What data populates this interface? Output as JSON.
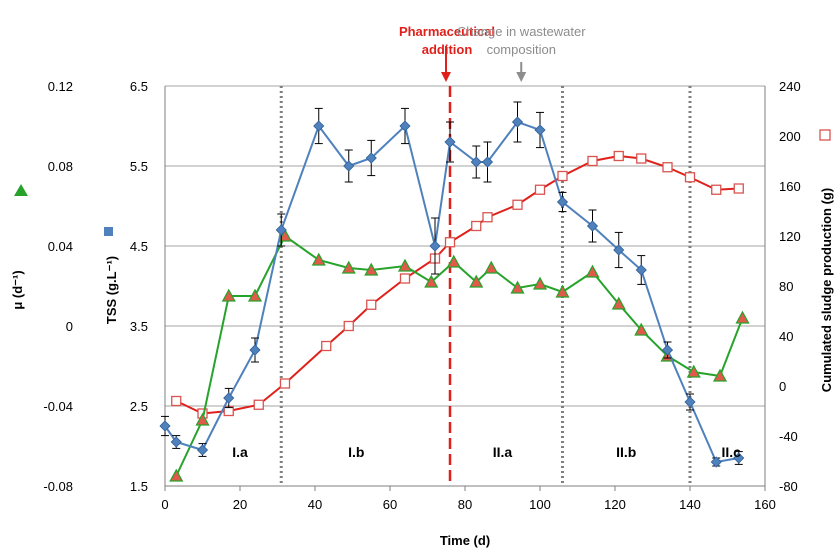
{
  "chart_data": {
    "type": "line",
    "xlabel": "Time (d)",
    "xlim": [
      0,
      160
    ],
    "x_ticks": [
      "0",
      "20",
      "40",
      "60",
      "80",
      "100",
      "120",
      "140",
      "160"
    ],
    "axes": {
      "mu": {
        "label": "μ (d⁻¹)",
        "lim": [
          -0.08,
          0.12
        ],
        "ticks": [
          "-0.08",
          "-0.04",
          "0",
          "0.04",
          "0.08",
          "0.12"
        ],
        "marker_color": "#27a32c"
      },
      "tss": {
        "label": "TSS (g.L⁻¹)",
        "lim": [
          1.5,
          6.5
        ],
        "ticks": [
          "1.5",
          "2.5",
          "3.5",
          "4.5",
          "5.5",
          "6.5"
        ],
        "marker_color": "#4f81bd"
      },
      "sludge": {
        "label": "Cumulated sludge production (g)",
        "lim": [
          -80,
          240
        ],
        "ticks": [
          "-80",
          "-40",
          "0",
          "40",
          "80",
          "120",
          "160",
          "200",
          "240"
        ],
        "marker_color": "#d9534f"
      }
    },
    "grid": "horizontal",
    "series": [
      {
        "axis": "tss",
        "color": "#4f81bd",
        "marker": "diamond",
        "x": [
          0,
          3,
          10,
          17,
          24,
          31,
          41,
          49,
          55,
          64,
          72,
          76,
          83,
          86,
          94,
          100,
          106,
          114,
          121,
          127,
          134,
          140,
          147,
          153
        ],
        "y": [
          2.25,
          2.05,
          1.95,
          2.6,
          3.2,
          4.7,
          6.0,
          5.5,
          5.6,
          6.0,
          4.5,
          5.8,
          5.55,
          5.55,
          6.05,
          5.95,
          5.05,
          4.75,
          4.45,
          4.2,
          3.2,
          2.55,
          1.8,
          1.85
        ],
        "err": [
          0.12,
          0.08,
          0.08,
          0.12,
          0.15,
          0.2,
          0.22,
          0.2,
          0.22,
          0.22,
          0.35,
          0.25,
          0.2,
          0.25,
          0.25,
          0.22,
          0.12,
          0.2,
          0.22,
          0.18,
          0.1,
          0.1,
          0.05,
          0.08
        ]
      },
      {
        "axis": "mu",
        "color": "#27a32c",
        "marker": "triangle",
        "x": [
          3,
          10,
          17,
          24,
          32,
          41,
          49,
          55,
          64,
          71,
          77,
          83,
          87,
          94,
          100,
          106,
          114,
          121,
          127,
          134,
          141,
          148,
          154
        ],
        "y": [
          -0.075,
          -0.047,
          0.015,
          0.015,
          0.045,
          0.033,
          0.029,
          0.028,
          0.03,
          0.022,
          0.032,
          0.022,
          0.029,
          0.019,
          0.021,
          0.017,
          0.027,
          0.011,
          -0.002,
          -0.015,
          -0.023,
          -0.025,
          0.004
        ]
      },
      {
        "axis": "sludge",
        "color": "#e0201b",
        "marker": "open-square",
        "x": [
          3,
          10,
          17,
          25,
          32,
          43,
          49,
          55,
          64,
          72,
          76,
          83,
          86,
          94,
          100,
          106,
          114,
          121,
          127,
          134,
          140,
          147,
          153
        ],
        "y": [
          -12,
          -22,
          -20,
          -15,
          2,
          32,
          48,
          65,
          86,
          102,
          115,
          128,
          135,
          145,
          157,
          168,
          180,
          184,
          182,
          175,
          167,
          157,
          158
        ]
      }
    ],
    "vlines": [
      {
        "x": 31,
        "style": "dotted",
        "color": "#7f7f7f"
      },
      {
        "x": 106,
        "style": "dotted",
        "color": "#7f7f7f"
      },
      {
        "x": 140,
        "style": "dotted",
        "color": "#7f7f7f"
      },
      {
        "x": 76,
        "style": "dashed",
        "color": "#e0201b"
      }
    ],
    "annotations": [
      {
        "line1": "Pharmaceutical",
        "line2": "addition",
        "x": 76,
        "color": "#e0201b"
      },
      {
        "line1": "Change in wastewater",
        "line2": "composition",
        "x": 95,
        "color": "#8c8c8c"
      }
    ],
    "phases": [
      {
        "label": "I.a",
        "x": 20
      },
      {
        "label": "I.b",
        "x": 51
      },
      {
        "label": "II.a",
        "x": 90
      },
      {
        "label": "II.b",
        "x": 123
      },
      {
        "label": "II.c",
        "x": 151
      }
    ]
  }
}
